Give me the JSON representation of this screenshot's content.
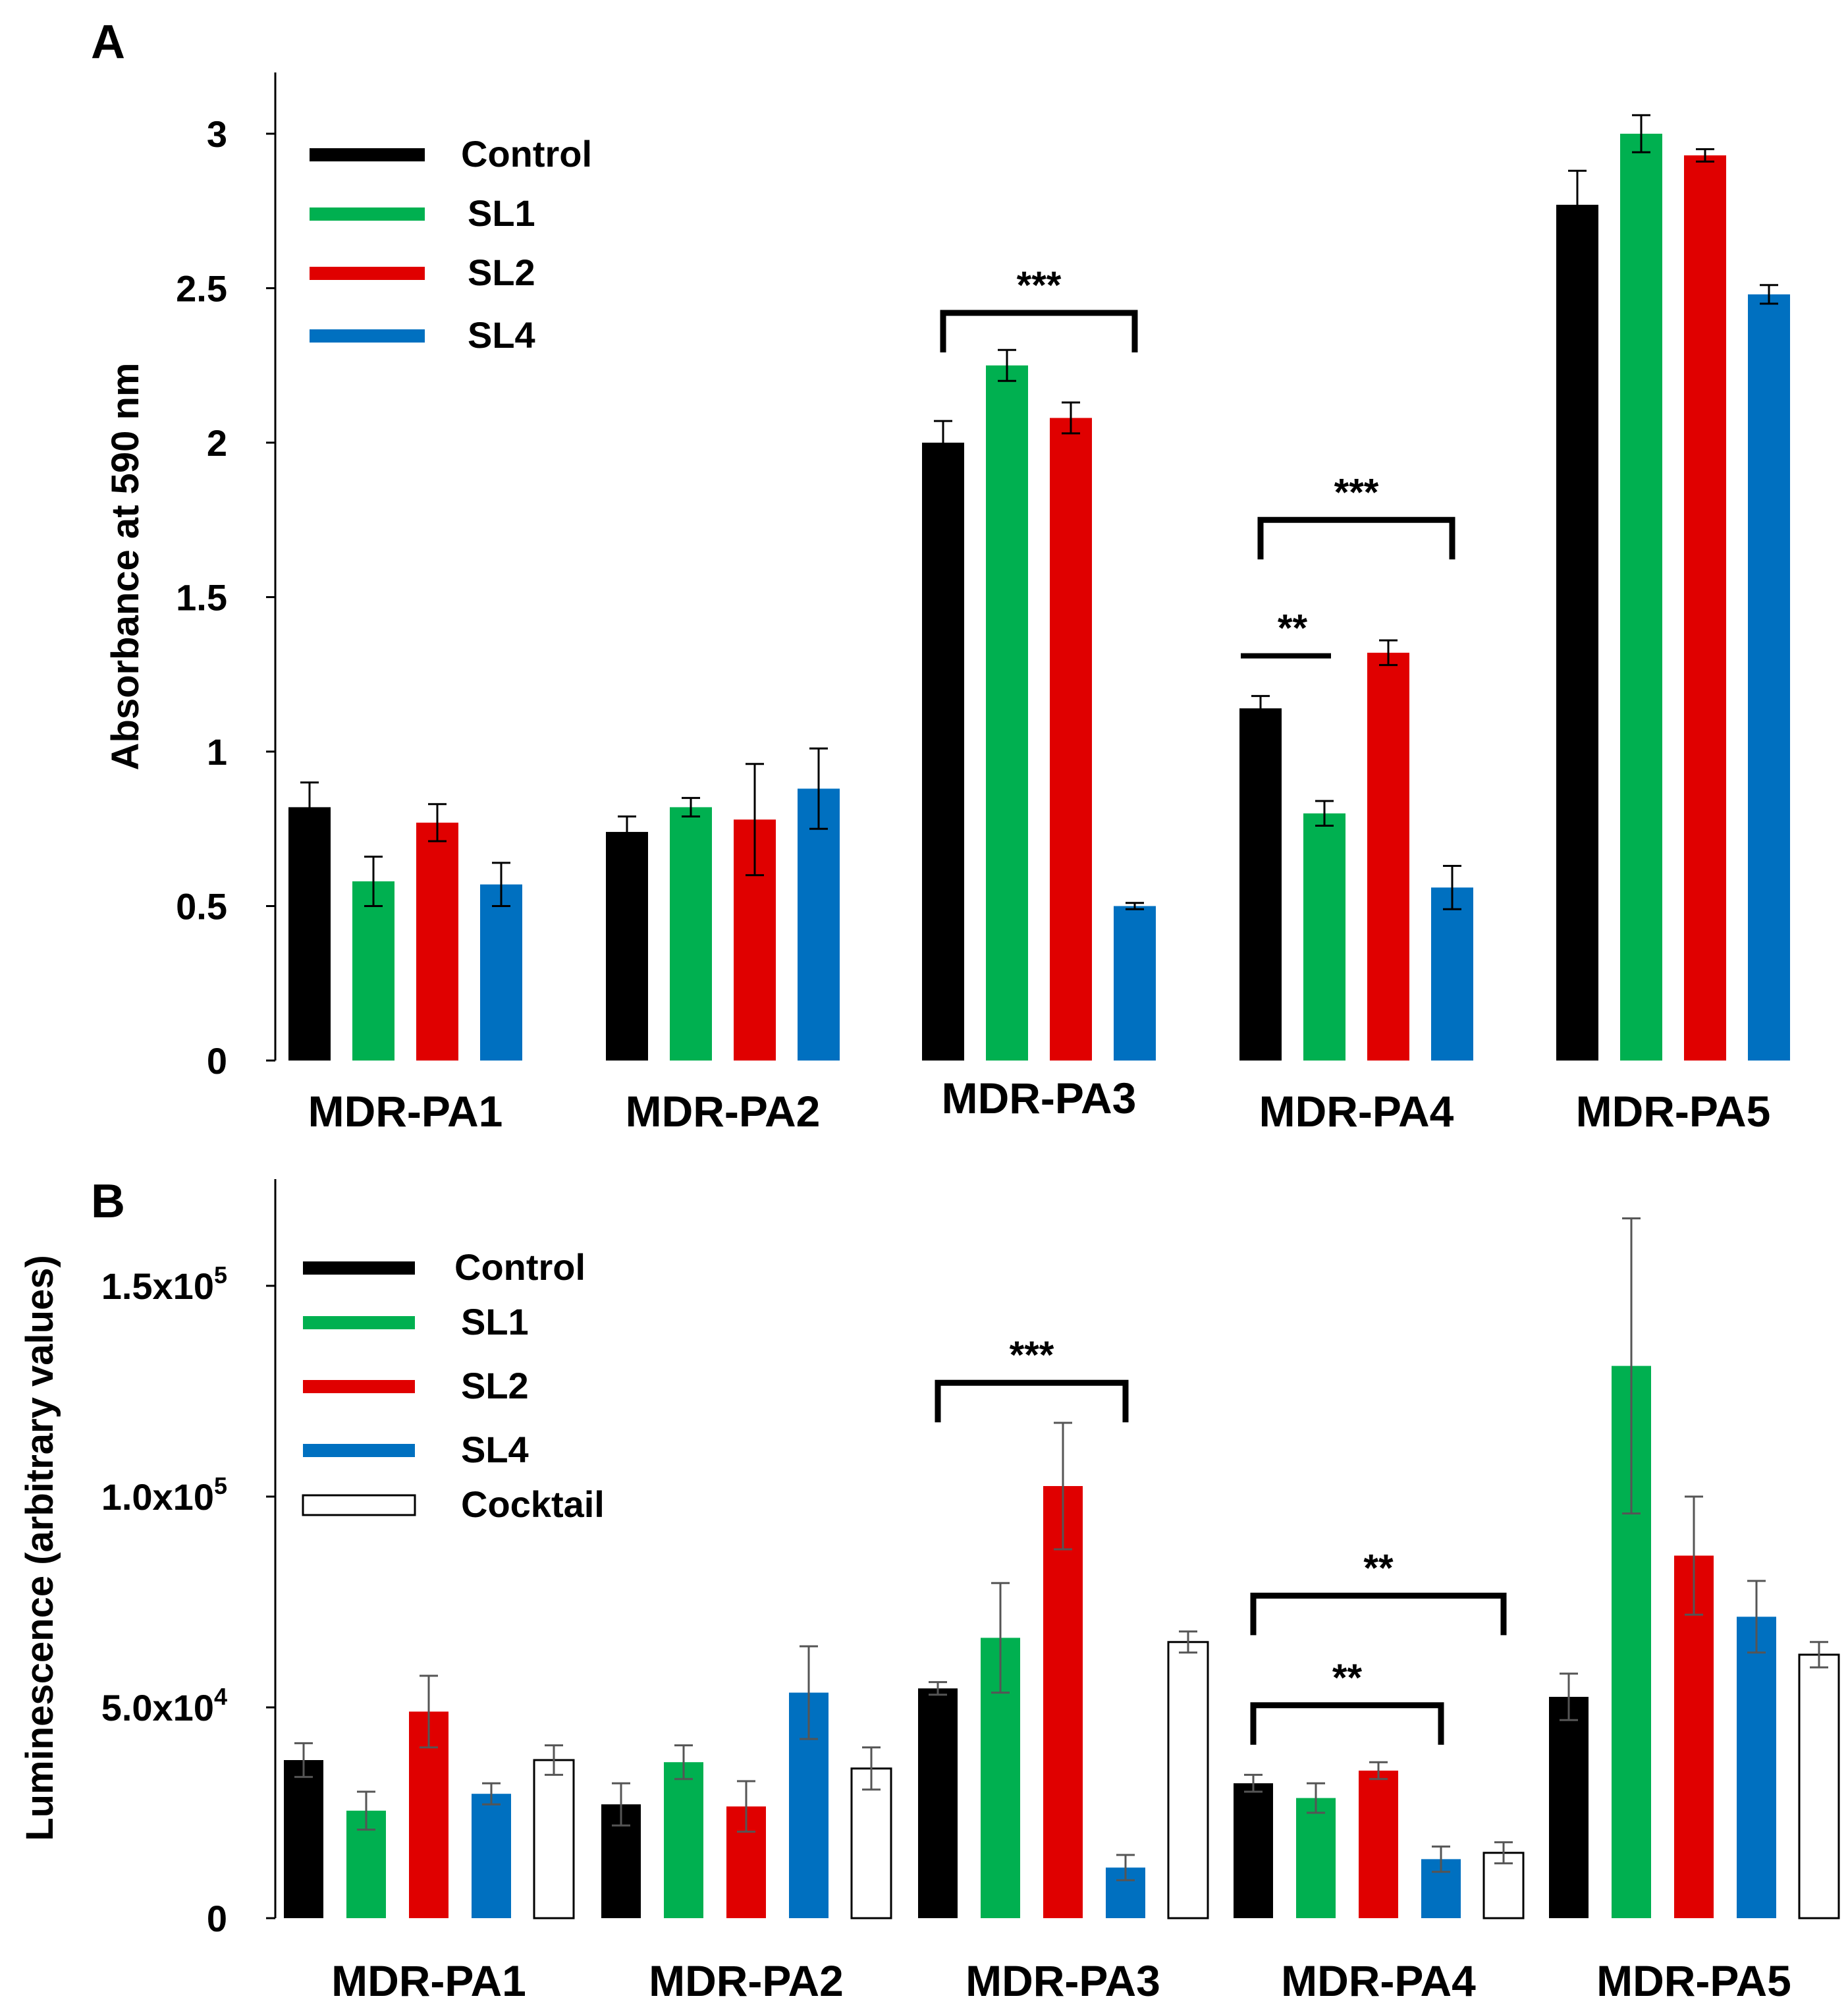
{
  "chart_data": [
    {
      "panel": "A",
      "type": "bar",
      "ylabel": "Absorbance at 590 nm",
      "xlabel": "",
      "ylim": [
        0,
        3.2
      ],
      "yticks": [
        {
          "value": 0,
          "label": "0"
        },
        {
          "value": 0.5,
          "label": "0.5"
        },
        {
          "value": 1,
          "label": "1"
        },
        {
          "value": 1.5,
          "label": "1.5"
        },
        {
          "value": 2,
          "label": "2"
        },
        {
          "value": 2.5,
          "label": "2.5"
        },
        {
          "value": 3,
          "label": "3"
        }
      ],
      "grid": false,
      "legend_position": "top-left",
      "categories": [
        "MDR-PA1",
        "MDR-PA2",
        "MDR-PA3",
        "MDR-PA4",
        "MDR-PA5"
      ],
      "series": [
        {
          "name": "Control",
          "color": "#000000",
          "values": [
            0.82,
            0.74,
            2.0,
            1.14,
            2.77
          ],
          "errors": [
            0.08,
            0.05,
            0.07,
            0.04,
            0.11
          ]
        },
        {
          "name": "SL1",
          "color": "#00b050",
          "values": [
            0.58,
            0.82,
            2.25,
            0.8,
            3.0
          ],
          "errors": [
            0.08,
            0.03,
            0.05,
            0.04,
            0.06
          ]
        },
        {
          "name": "SL2",
          "color": "#e00000",
          "values": [
            0.77,
            0.78,
            2.08,
            1.32,
            2.93
          ],
          "errors": [
            0.06,
            0.18,
            0.05,
            0.04,
            0.02
          ]
        },
        {
          "name": "SL4",
          "color": "#0070c0",
          "values": [
            0.57,
            0.88,
            0.5,
            0.56,
            2.48
          ],
          "errors": [
            0.07,
            0.13,
            0.01,
            0.07,
            0.03
          ]
        }
      ],
      "annotations": [
        {
          "text": "***",
          "group": 2,
          "from": 0,
          "to": 3,
          "style": "bracket",
          "y": 2.42
        },
        {
          "text": "***",
          "group": 3,
          "from": 0,
          "to": 3,
          "style": "bracket",
          "y": 1.75
        },
        {
          "text": "**",
          "group": 3,
          "from": 0,
          "to": 1,
          "style": "line",
          "y": 1.31
        }
      ]
    },
    {
      "panel": "B",
      "type": "bar",
      "ylabel": "Luminescence  (arbitrary values)",
      "xlabel": "",
      "ylim": [
        0,
        176000
      ],
      "yticks": [
        {
          "value": 0,
          "label": "0",
          "exp": ""
        },
        {
          "value": 50000,
          "label": "5.0x10",
          "exp": "4"
        },
        {
          "value": 100000,
          "label": "1.0x10",
          "exp": "5"
        },
        {
          "value": 150000,
          "label": "1.5x10",
          "exp": "5"
        }
      ],
      "grid": false,
      "legend_position": "top-left",
      "categories": [
        "MDR-PA1",
        "MDR-PA2",
        "MDR-PA3",
        "MDR-PA4",
        "MDR-PA5"
      ],
      "series": [
        {
          "name": "Control",
          "color": "#000000",
          "values": [
            37500,
            27000,
            54500,
            32000,
            52500
          ],
          "errors": [
            4000,
            5000,
            1500,
            2000,
            5500
          ]
        },
        {
          "name": "SL1",
          "color": "#00b050",
          "values": [
            25500,
            37000,
            66500,
            28500,
            131000
          ],
          "errors": [
            4500,
            4000,
            13000,
            3500,
            35000
          ]
        },
        {
          "name": "SL2",
          "color": "#e00000",
          "values": [
            49000,
            26500,
            102500,
            35000,
            86000
          ],
          "errors": [
            8500,
            6000,
            15000,
            2000,
            14000
          ]
        },
        {
          "name": "SL4",
          "color": "#0070c0",
          "values": [
            29500,
            53500,
            12000,
            14000,
            71500
          ],
          "errors": [
            2500,
            11000,
            3000,
            3000,
            8500
          ]
        },
        {
          "name": "Cocktail",
          "color": "#ffffff",
          "values": [
            37500,
            35500,
            65500,
            15500,
            62500
          ],
          "errors": [
            3500,
            5000,
            2500,
            2500,
            3000
          ]
        }
      ],
      "annotations": [
        {
          "text": "***",
          "group": 2,
          "from": 0,
          "to": 3,
          "style": "bracket",
          "y": 127000
        },
        {
          "text": "**",
          "group": 3,
          "from": 0,
          "to": 4,
          "style": "bracket",
          "y": 76500
        },
        {
          "text": "**",
          "group": 3,
          "from": 0,
          "to": 3,
          "style": "bracket",
          "y": 50500
        }
      ]
    }
  ]
}
